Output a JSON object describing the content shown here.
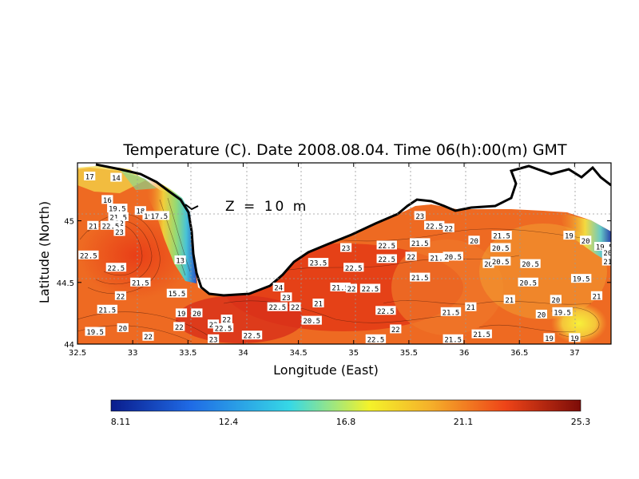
{
  "title": "Temperature (C). Date 2008.08.04. Time 06(h):00(m) GMT",
  "depth_label": "Z = 10 m",
  "xlabel": "Longitude (East)",
  "ylabel": "Latitude (North)",
  "xlim": [
    32.5,
    37.33
  ],
  "ylim": [
    44.0,
    45.47
  ],
  "x_ticks": [
    "32.5",
    "33",
    "33.5",
    "34",
    "34.5",
    "35",
    "35.5",
    "36",
    "36.5",
    "37"
  ],
  "y_ticks": [
    "44",
    "44.5",
    "45"
  ],
  "colorbar": {
    "min": 8.11,
    "max": 25.3,
    "ticks": [
      "8.11",
      "12.4",
      "16.8",
      "21.1",
      "25.3"
    ],
    "colors": [
      "#0a1c8c",
      "#1f6be6",
      "#36d8e6",
      "#f4f22a",
      "#f5b02a",
      "#ee4418",
      "#7c0c08"
    ]
  },
  "contour_labels": [
    {
      "t": "17",
      "lon": 32.61,
      "lat": 45.36
    },
    {
      "t": "14",
      "lon": 32.85,
      "lat": 45.35
    },
    {
      "t": "16",
      "lon": 32.77,
      "lat": 45.17
    },
    {
      "t": "19.5",
      "lon": 32.86,
      "lat": 45.1
    },
    {
      "t": "18",
      "lon": 33.07,
      "lat": 45.08
    },
    {
      "t": "19",
      "lon": 33.14,
      "lat": 45.04
    },
    {
      "t": "17.5",
      "lon": 33.24,
      "lat": 45.04
    },
    {
      "t": "21.5",
      "lon": 32.87,
      "lat": 45.03
    },
    {
      "t": "22",
      "lon": 32.88,
      "lat": 44.98
    },
    {
      "t": "21",
      "lon": 32.64,
      "lat": 44.96
    },
    {
      "t": "22.5",
      "lon": 32.8,
      "lat": 44.96
    },
    {
      "t": "23",
      "lon": 32.88,
      "lat": 44.91
    },
    {
      "t": "22.5",
      "lon": 32.6,
      "lat": 44.72
    },
    {
      "t": "22.5",
      "lon": 32.85,
      "lat": 44.62
    },
    {
      "t": "13",
      "lon": 33.43,
      "lat": 44.68
    },
    {
      "t": "21.5",
      "lon": 33.07,
      "lat": 44.5
    },
    {
      "t": "22",
      "lon": 32.89,
      "lat": 44.39
    },
    {
      "t": "15.5",
      "lon": 33.4,
      "lat": 44.41
    },
    {
      "t": "21.5",
      "lon": 32.77,
      "lat": 44.28
    },
    {
      "t": "19",
      "lon": 33.44,
      "lat": 44.25
    },
    {
      "t": "20",
      "lon": 33.58,
      "lat": 44.25
    },
    {
      "t": "20",
      "lon": 32.91,
      "lat": 44.13
    },
    {
      "t": "19.5",
      "lon": 32.66,
      "lat": 44.1
    },
    {
      "t": "22",
      "lon": 33.14,
      "lat": 44.06
    },
    {
      "t": "22",
      "lon": 33.42,
      "lat": 44.14
    },
    {
      "t": "22",
      "lon": 33.73,
      "lat": 44.16
    },
    {
      "t": "22",
      "lon": 33.85,
      "lat": 44.2
    },
    {
      "t": "22.5",
      "lon": 33.82,
      "lat": 44.13
    },
    {
      "t": "22.5",
      "lon": 34.08,
      "lat": 44.07
    },
    {
      "t": "23",
      "lon": 33.73,
      "lat": 44.04
    },
    {
      "t": "24",
      "lon": 34.32,
      "lat": 44.46
    },
    {
      "t": "23",
      "lon": 34.39,
      "lat": 44.38
    },
    {
      "t": "22.5",
      "lon": 34.31,
      "lat": 44.3
    },
    {
      "t": "22",
      "lon": 34.47,
      "lat": 44.3
    },
    {
      "t": "21",
      "lon": 34.68,
      "lat": 44.33
    },
    {
      "t": "20.5",
      "lon": 34.62,
      "lat": 44.19
    },
    {
      "t": "23.5",
      "lon": 34.68,
      "lat": 44.66
    },
    {
      "t": "23",
      "lon": 34.93,
      "lat": 44.78
    },
    {
      "t": "22.5",
      "lon": 35.0,
      "lat": 44.62
    },
    {
      "t": "21.5",
      "lon": 34.88,
      "lat": 44.46
    },
    {
      "t": "22",
      "lon": 34.98,
      "lat": 44.45
    },
    {
      "t": "22.5",
      "lon": 35.15,
      "lat": 44.45
    },
    {
      "t": "22.5",
      "lon": 35.3,
      "lat": 44.8
    },
    {
      "t": "22.5",
      "lon": 35.3,
      "lat": 44.69
    },
    {
      "t": "22",
      "lon": 35.52,
      "lat": 44.71
    },
    {
      "t": "21.5",
      "lon": 35.6,
      "lat": 44.82
    },
    {
      "t": "21.5",
      "lon": 35.77,
      "lat": 44.7
    },
    {
      "t": "20.5",
      "lon": 35.9,
      "lat": 44.71
    },
    {
      "t": "21.5",
      "lon": 35.6,
      "lat": 44.54
    },
    {
      "t": "22.5",
      "lon": 35.29,
      "lat": 44.27
    },
    {
      "t": "22",
      "lon": 35.38,
      "lat": 44.12
    },
    {
      "t": "22.5",
      "lon": 35.2,
      "lat": 44.04
    },
    {
      "t": "23",
      "lon": 35.6,
      "lat": 45.04
    },
    {
      "t": "22.5",
      "lon": 35.73,
      "lat": 44.96
    },
    {
      "t": "22",
      "lon": 35.86,
      "lat": 44.94
    },
    {
      "t": "20",
      "lon": 36.09,
      "lat": 44.84
    },
    {
      "t": "21.5",
      "lon": 36.34,
      "lat": 44.88
    },
    {
      "t": "20.5",
      "lon": 36.33,
      "lat": 44.78
    },
    {
      "t": "20",
      "lon": 36.22,
      "lat": 44.65
    },
    {
      "t": "20.5",
      "lon": 36.33,
      "lat": 44.67
    },
    {
      "t": "20.5",
      "lon": 36.6,
      "lat": 44.65
    },
    {
      "t": "20.5",
      "lon": 36.58,
      "lat": 44.5
    },
    {
      "t": "21",
      "lon": 36.41,
      "lat": 44.36
    },
    {
      "t": "21",
      "lon": 36.06,
      "lat": 44.3
    },
    {
      "t": "21.5",
      "lon": 35.88,
      "lat": 44.26
    },
    {
      "t": "21.5",
      "lon": 36.16,
      "lat": 44.08
    },
    {
      "t": "21.5",
      "lon": 35.9,
      "lat": 44.04
    },
    {
      "t": "19",
      "lon": 36.95,
      "lat": 44.88
    },
    {
      "t": "20",
      "lon": 37.1,
      "lat": 44.84
    },
    {
      "t": "19.5",
      "lon": 37.27,
      "lat": 44.79
    },
    {
      "t": "20",
      "lon": 37.3,
      "lat": 44.74
    },
    {
      "t": "21",
      "lon": 37.3,
      "lat": 44.67
    },
    {
      "t": "19.5",
      "lon": 37.06,
      "lat": 44.53
    },
    {
      "t": "20",
      "lon": 36.83,
      "lat": 44.36
    },
    {
      "t": "21",
      "lon": 37.2,
      "lat": 44.39
    },
    {
      "t": "19.5",
      "lon": 36.89,
      "lat": 44.26
    },
    {
      "t": "20",
      "lon": 36.7,
      "lat": 44.24
    },
    {
      "t": "19",
      "lon": 36.77,
      "lat": 44.05
    },
    {
      "t": "19",
      "lon": 37.0,
      "lat": 44.05
    }
  ]
}
